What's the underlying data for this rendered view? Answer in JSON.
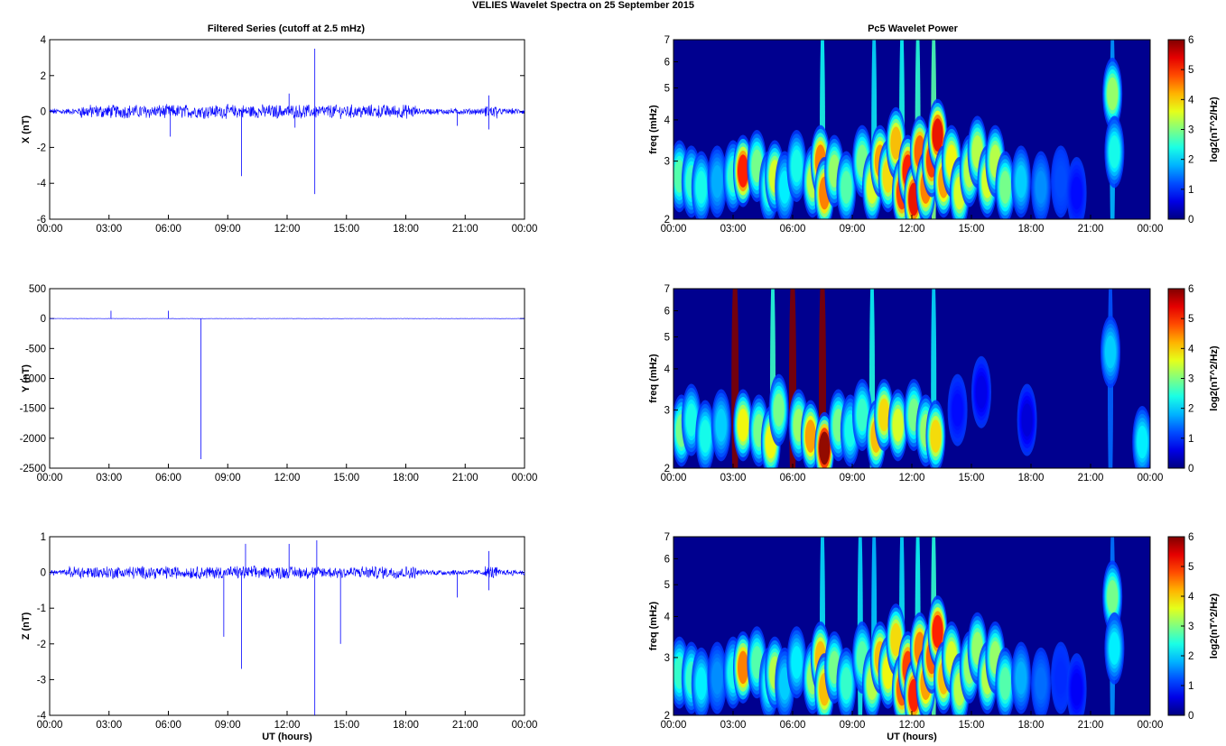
{
  "figure": {
    "title": "VELIES Wavelet Spectra on 25 September 2015",
    "left_title": "Filtered Series (cutoff at 2.5 mHz)",
    "right_title": "Pc5 Wavelet Power",
    "xlabel": "UT (hours)",
    "colorbar_label": "log2(nT^2/Hz)",
    "colors": {
      "series": "#0000ff",
      "axes": "#000000",
      "background": "#00008f"
    }
  },
  "chart_data": [
    {
      "type": "line",
      "title": "Filtered Series (cutoff at 2.5 mHz)",
      "ylabel": "X (nT)",
      "xlabel": "",
      "x_ticks": [
        "00:00",
        "03:00",
        "06:00",
        "09:00",
        "12:00",
        "15:00",
        "18:00",
        "21:00",
        "00:00"
      ],
      "xlim": [
        0,
        24
      ],
      "ylim": [
        -6,
        4
      ],
      "y_ticks": [
        "4",
        "2",
        "0",
        "-2",
        "-4",
        "-6"
      ],
      "series": [
        {
          "noise_amplitude": 0.15,
          "active_intervals": [
            [
              1.5,
              18.5
            ],
            [
              22.0,
              22.6
            ]
          ],
          "spikes": [
            {
              "x": 6.1,
              "y": -1.4
            },
            {
              "x": 9.7,
              "y": -3.6
            },
            {
              "x": 12.1,
              "y": 1.0
            },
            {
              "x": 12.4,
              "y": -0.9
            },
            {
              "x": 13.4,
              "y": 3.5
            },
            {
              "x": 13.4,
              "y": -4.6
            },
            {
              "x": 20.6,
              "y": -0.8
            },
            {
              "x": 22.2,
              "y": 0.9
            },
            {
              "x": 22.2,
              "y": -1.0
            }
          ]
        }
      ]
    },
    {
      "type": "line",
      "ylabel": "Y (nT)",
      "xlabel": "",
      "x_ticks": [
        "00:00",
        "03:00",
        "06:00",
        "09:00",
        "12:00",
        "15:00",
        "18:00",
        "21:00",
        "00:00"
      ],
      "xlim": [
        0,
        24
      ],
      "ylim": [
        -2500,
        500
      ],
      "y_ticks": [
        "500",
        "0",
        "-500",
        "-1000",
        "-1500",
        "-2000",
        "-2500"
      ],
      "series": [
        {
          "noise_amplitude": 2,
          "active_intervals": [],
          "spikes": [
            {
              "x": 3.1,
              "y": 130
            },
            {
              "x": 6.0,
              "y": 130
            },
            {
              "x": 7.65,
              "y": -2350
            }
          ]
        }
      ]
    },
    {
      "type": "line",
      "ylabel": "Z (nT)",
      "xlabel": "UT (hours)",
      "x_ticks": [
        "00:00",
        "03:00",
        "06:00",
        "09:00",
        "12:00",
        "15:00",
        "18:00",
        "21:00",
        "00:00"
      ],
      "xlim": [
        0,
        24
      ],
      "ylim": [
        -4,
        1
      ],
      "y_ticks": [
        "1",
        "0",
        "-1",
        "-2",
        "-3",
        "-4"
      ],
      "series": [
        {
          "noise_amplitude": 0.07,
          "active_intervals": [
            [
              1.0,
              18.5
            ],
            [
              22.0,
              22.6
            ]
          ],
          "spikes": [
            {
              "x": 8.8,
              "y": -1.8
            },
            {
              "x": 9.7,
              "y": -2.7
            },
            {
              "x": 9.9,
              "y": 0.8
            },
            {
              "x": 12.1,
              "y": 0.8
            },
            {
              "x": 13.4,
              "y": -4.0
            },
            {
              "x": 13.5,
              "y": 0.9
            },
            {
              "x": 14.7,
              "y": -2.0
            },
            {
              "x": 20.6,
              "y": -0.7
            },
            {
              "x": 22.2,
              "y": 0.6
            },
            {
              "x": 22.2,
              "y": -0.5
            }
          ]
        }
      ]
    },
    {
      "type": "heatmap",
      "title": "Pc5 Wavelet Power",
      "ylabel": "freq (mHz)",
      "xlabel": "",
      "x_ticks": [
        "00:00",
        "03:00",
        "06:00",
        "09:00",
        "12:00",
        "15:00",
        "18:00",
        "21:00",
        "00:00"
      ],
      "xlim": [
        0,
        24
      ],
      "ylim": [
        2,
        7
      ],
      "y_scale": "log",
      "y_ticks": [
        "7",
        "6",
        "5",
        "4",
        "3",
        "2"
      ],
      "colorbar": {
        "label": "log2(nT^2/Hz)",
        "range": [
          0,
          6
        ],
        "ticks": [
          "6",
          "5",
          "4",
          "3",
          "2",
          "1",
          "0"
        ],
        "colormap": "jet"
      },
      "blobs": [
        {
          "t": 0.3,
          "f": 2.7,
          "p": 2.8
        },
        {
          "t": 0.9,
          "f": 2.6,
          "p": 2.6
        },
        {
          "t": 1.4,
          "f": 2.5,
          "p": 2.4
        },
        {
          "t": 2.2,
          "f": 2.6,
          "p": 1.8
        },
        {
          "t": 3.0,
          "f": 2.7,
          "p": 2.6
        },
        {
          "t": 3.5,
          "f": 2.8,
          "p": 5.2
        },
        {
          "t": 4.2,
          "f": 2.9,
          "p": 3.0
        },
        {
          "t": 4.8,
          "f": 2.5,
          "p": 2.6
        },
        {
          "t": 5.1,
          "f": 2.7,
          "p": 3.6
        },
        {
          "t": 5.6,
          "f": 2.5,
          "p": 2.2
        },
        {
          "t": 6.2,
          "f": 2.9,
          "p": 2.4
        },
        {
          "t": 7.0,
          "f": 2.6,
          "p": 3.4
        },
        {
          "t": 7.4,
          "f": 3.0,
          "p": 4.6
        },
        {
          "t": 7.6,
          "f": 2.4,
          "p": 4.6
        },
        {
          "t": 8.1,
          "f": 2.8,
          "p": 3.2
        },
        {
          "t": 8.7,
          "f": 2.5,
          "p": 2.8
        },
        {
          "t": 9.5,
          "f": 3.0,
          "p": 3.0
        },
        {
          "t": 10.0,
          "f": 2.5,
          "p": 3.6
        },
        {
          "t": 10.4,
          "f": 3.0,
          "p": 4.4
        },
        {
          "t": 10.8,
          "f": 2.7,
          "p": 4.0
        },
        {
          "t": 11.2,
          "f": 3.4,
          "p": 4.2
        },
        {
          "t": 11.5,
          "f": 2.4,
          "p": 5.0
        },
        {
          "t": 11.8,
          "f": 2.8,
          "p": 5.2
        },
        {
          "t": 12.1,
          "f": 2.3,
          "p": 5.4
        },
        {
          "t": 12.4,
          "f": 3.2,
          "p": 4.8
        },
        {
          "t": 12.7,
          "f": 2.5,
          "p": 4.6
        },
        {
          "t": 13.0,
          "f": 3.0,
          "p": 5.0
        },
        {
          "t": 13.3,
          "f": 3.6,
          "p": 5.4
        },
        {
          "t": 13.6,
          "f": 2.6,
          "p": 4.4
        },
        {
          "t": 14.0,
          "f": 3.0,
          "p": 3.8
        },
        {
          "t": 14.4,
          "f": 2.4,
          "p": 3.6
        },
        {
          "t": 14.9,
          "f": 2.8,
          "p": 3.4
        },
        {
          "t": 15.3,
          "f": 3.2,
          "p": 3.4
        },
        {
          "t": 15.8,
          "f": 2.6,
          "p": 3.6
        },
        {
          "t": 16.2,
          "f": 3.0,
          "p": 3.4
        },
        {
          "t": 16.7,
          "f": 2.5,
          "p": 3.0
        },
        {
          "t": 17.5,
          "f": 2.6,
          "p": 2.0
        },
        {
          "t": 18.5,
          "f": 2.5,
          "p": 1.6
        },
        {
          "t": 19.5,
          "f": 2.6,
          "p": 1.2
        },
        {
          "t": 20.3,
          "f": 2.4,
          "p": 0.8
        },
        {
          "t": 22.1,
          "f": 4.8,
          "p": 3.2
        },
        {
          "t": 22.2,
          "f": 3.2,
          "p": 2.4
        }
      ],
      "columns": [
        {
          "t": 7.5,
          "p": 2.2
        },
        {
          "t": 10.1,
          "p": 2.0
        },
        {
          "t": 11.5,
          "p": 2.2
        },
        {
          "t": 12.3,
          "p": 2.4
        },
        {
          "t": 13.1,
          "p": 2.6
        },
        {
          "t": 22.1,
          "p": 1.6
        }
      ]
    },
    {
      "type": "heatmap",
      "ylabel": "freq (mHz)",
      "xlabel": "",
      "x_ticks": [
        "00:00",
        "03:00",
        "06:00",
        "09:00",
        "12:00",
        "15:00",
        "18:00",
        "21:00",
        "00:00"
      ],
      "xlim": [
        0,
        24
      ],
      "ylim": [
        2,
        7
      ],
      "y_scale": "log",
      "y_ticks": [
        "7",
        "6",
        "5",
        "4",
        "3",
        "2"
      ],
      "colorbar": {
        "label": "log2(nT^2/Hz)",
        "range": [
          0,
          6
        ],
        "ticks": [
          "6",
          "5",
          "4",
          "3",
          "2",
          "1",
          "0"
        ],
        "colormap": "jet"
      },
      "blobs": [
        {
          "t": 0.4,
          "f": 2.6,
          "p": 3.0
        },
        {
          "t": 0.9,
          "f": 2.8,
          "p": 2.4
        },
        {
          "t": 1.6,
          "f": 2.5,
          "p": 2.4
        },
        {
          "t": 2.4,
          "f": 2.7,
          "p": 2.0
        },
        {
          "t": 3.5,
          "f": 2.7,
          "p": 3.8
        },
        {
          "t": 4.3,
          "f": 2.6,
          "p": 3.0
        },
        {
          "t": 4.9,
          "f": 2.4,
          "p": 3.8
        },
        {
          "t": 5.3,
          "f": 3.0,
          "p": 3.0
        },
        {
          "t": 6.3,
          "f": 2.7,
          "p": 3.2
        },
        {
          "t": 6.9,
          "f": 2.5,
          "p": 4.4
        },
        {
          "t": 7.6,
          "f": 2.3,
          "p": 6.0
        },
        {
          "t": 8.3,
          "f": 2.7,
          "p": 3.0
        },
        {
          "t": 8.9,
          "f": 2.6,
          "p": 2.4
        },
        {
          "t": 9.5,
          "f": 2.9,
          "p": 2.6
        },
        {
          "t": 10.2,
          "f": 2.5,
          "p": 4.2
        },
        {
          "t": 10.6,
          "f": 2.9,
          "p": 4.0
        },
        {
          "t": 11.3,
          "f": 2.7,
          "p": 3.6
        },
        {
          "t": 12.1,
          "f": 2.9,
          "p": 3.0
        },
        {
          "t": 12.7,
          "f": 2.6,
          "p": 3.2
        },
        {
          "t": 13.2,
          "f": 2.5,
          "p": 4.0
        },
        {
          "t": 14.3,
          "f": 3.0,
          "p": 0.8
        },
        {
          "t": 15.5,
          "f": 3.4,
          "p": 0.6
        },
        {
          "t": 17.8,
          "f": 2.8,
          "p": 0.5
        },
        {
          "t": 22.0,
          "f": 4.5,
          "p": 2.0
        },
        {
          "t": 23.6,
          "f": 2.4,
          "p": 2.2
        }
      ],
      "columns": [
        {
          "t": 3.1,
          "p": 6.0
        },
        {
          "t": 5.0,
          "p": 2.4
        },
        {
          "t": 6.0,
          "p": 6.0
        },
        {
          "t": 7.5,
          "p": 6.0
        },
        {
          "t": 10.0,
          "p": 2.2
        },
        {
          "t": 13.1,
          "p": 2.0
        },
        {
          "t": 22.0,
          "p": 1.2
        }
      ]
    },
    {
      "type": "heatmap",
      "ylabel": "freq (mHz)",
      "xlabel": "UT (hours)",
      "x_ticks": [
        "00:00",
        "03:00",
        "06:00",
        "09:00",
        "12:00",
        "15:00",
        "18:00",
        "21:00",
        "00:00"
      ],
      "xlim": [
        0,
        24
      ],
      "ylim": [
        2,
        7
      ],
      "y_scale": "log",
      "y_ticks": [
        "7",
        "6",
        "5",
        "4",
        "3",
        "2"
      ],
      "colorbar": {
        "label": "log2(nT^2/Hz)",
        "range": [
          0,
          6
        ],
        "ticks": [
          "6",
          "5",
          "4",
          "3",
          "2",
          "1",
          "0"
        ],
        "colormap": "jet"
      },
      "blobs": [
        {
          "t": 0.3,
          "f": 2.7,
          "p": 2.6
        },
        {
          "t": 0.9,
          "f": 2.6,
          "p": 2.6
        },
        {
          "t": 1.4,
          "f": 2.5,
          "p": 2.2
        },
        {
          "t": 2.2,
          "f": 2.6,
          "p": 1.6
        },
        {
          "t": 3.0,
          "f": 2.7,
          "p": 2.4
        },
        {
          "t": 3.5,
          "f": 2.8,
          "p": 4.6
        },
        {
          "t": 4.2,
          "f": 2.9,
          "p": 2.8
        },
        {
          "t": 4.8,
          "f": 2.5,
          "p": 2.4
        },
        {
          "t": 5.1,
          "f": 2.7,
          "p": 3.4
        },
        {
          "t": 5.6,
          "f": 2.5,
          "p": 2.0
        },
        {
          "t": 6.2,
          "f": 2.9,
          "p": 2.2
        },
        {
          "t": 7.0,
          "f": 2.6,
          "p": 3.2
        },
        {
          "t": 7.4,
          "f": 3.0,
          "p": 4.2
        },
        {
          "t": 7.6,
          "f": 2.4,
          "p": 4.2
        },
        {
          "t": 8.1,
          "f": 2.8,
          "p": 3.0
        },
        {
          "t": 8.7,
          "f": 2.5,
          "p": 2.6
        },
        {
          "t": 9.5,
          "f": 3.0,
          "p": 2.8
        },
        {
          "t": 10.0,
          "f": 2.5,
          "p": 3.4
        },
        {
          "t": 10.4,
          "f": 3.0,
          "p": 4.2
        },
        {
          "t": 10.8,
          "f": 2.7,
          "p": 3.8
        },
        {
          "t": 11.2,
          "f": 3.4,
          "p": 4.0
        },
        {
          "t": 11.5,
          "f": 2.4,
          "p": 4.8
        },
        {
          "t": 11.8,
          "f": 2.8,
          "p": 5.0
        },
        {
          "t": 12.1,
          "f": 2.3,
          "p": 5.2
        },
        {
          "t": 12.4,
          "f": 3.2,
          "p": 4.6
        },
        {
          "t": 12.7,
          "f": 2.5,
          "p": 4.4
        },
        {
          "t": 13.0,
          "f": 3.0,
          "p": 4.8
        },
        {
          "t": 13.3,
          "f": 3.6,
          "p": 5.2
        },
        {
          "t": 13.6,
          "f": 2.6,
          "p": 4.2
        },
        {
          "t": 14.0,
          "f": 3.0,
          "p": 3.6
        },
        {
          "t": 14.4,
          "f": 2.4,
          "p": 3.4
        },
        {
          "t": 14.9,
          "f": 2.8,
          "p": 3.2
        },
        {
          "t": 15.3,
          "f": 3.2,
          "p": 3.2
        },
        {
          "t": 15.8,
          "f": 2.6,
          "p": 3.4
        },
        {
          "t": 16.2,
          "f": 3.0,
          "p": 3.2
        },
        {
          "t": 16.7,
          "f": 2.5,
          "p": 2.8
        },
        {
          "t": 17.5,
          "f": 2.6,
          "p": 1.8
        },
        {
          "t": 18.5,
          "f": 2.5,
          "p": 1.4
        },
        {
          "t": 19.5,
          "f": 2.6,
          "p": 1.0
        },
        {
          "t": 20.3,
          "f": 2.4,
          "p": 0.7
        },
        {
          "t": 22.1,
          "f": 4.6,
          "p": 3.0
        },
        {
          "t": 22.2,
          "f": 3.2,
          "p": 2.2
        }
      ],
      "columns": [
        {
          "t": 7.5,
          "p": 2.0
        },
        {
          "t": 9.4,
          "p": 2.0
        },
        {
          "t": 10.1,
          "p": 1.8
        },
        {
          "t": 11.5,
          "p": 2.0
        },
        {
          "t": 12.3,
          "p": 2.2
        },
        {
          "t": 13.1,
          "p": 2.4
        },
        {
          "t": 22.1,
          "p": 1.4
        }
      ]
    }
  ]
}
